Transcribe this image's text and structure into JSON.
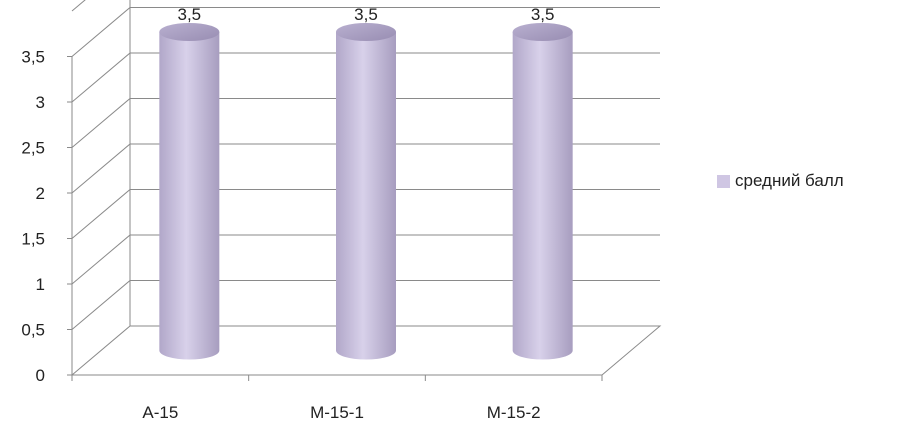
{
  "chart_data": {
    "type": "bar",
    "style": "3d-cylinder",
    "categories": [
      "А-15",
      "М-15-1",
      "М-15-2"
    ],
    "series": [
      {
        "name": "средний балл",
        "values": [
          3.5,
          3.5,
          3.5
        ],
        "color": "#cfc6e3"
      }
    ],
    "data_labels": [
      "3,5",
      "3,5",
      "3,5"
    ],
    "y_ticks": [
      "0",
      "0,5",
      "1",
      "1,5",
      "2",
      "2,5",
      "3",
      "3,5"
    ],
    "y_tick_values": [
      0,
      0.5,
      1,
      1.5,
      2,
      2.5,
      3,
      3.5
    ],
    "ylim": [
      0,
      4
    ],
    "title": "",
    "xlabel": "",
    "ylabel": "",
    "grid": true,
    "legend_position": "right"
  }
}
